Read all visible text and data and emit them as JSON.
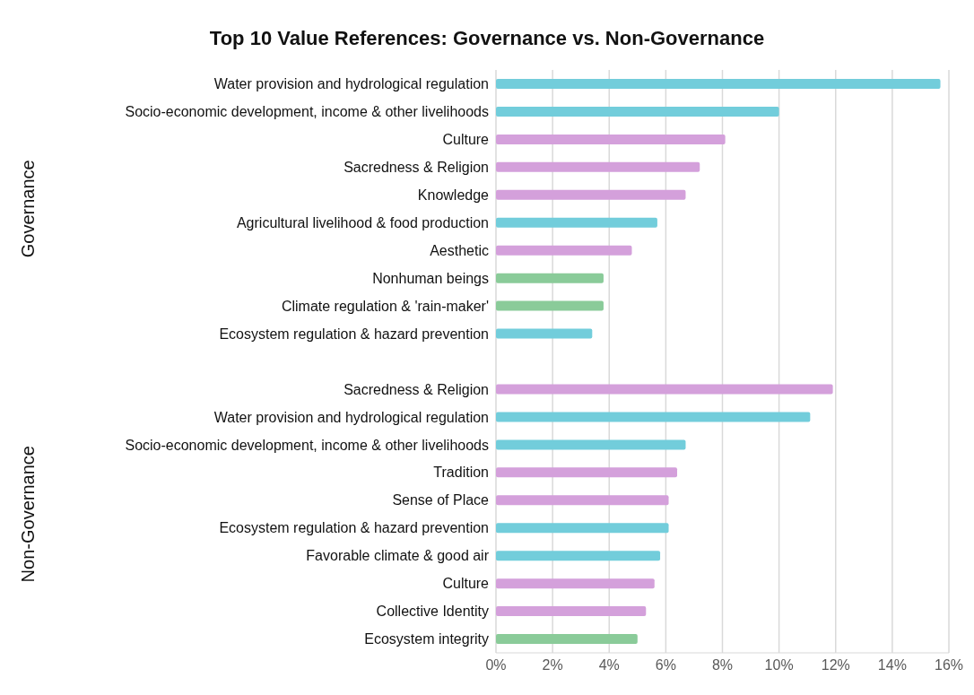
{
  "chart_data": {
    "type": "bar",
    "orientation": "horizontal",
    "title": "Top 10 Value References: Governance vs. Non-Governance",
    "categories": [
      "Water provision and hydrological regulation",
      "Socio-economic development, income & other livelihoods",
      "Culture",
      "Sacredness & Religion",
      "Knowledge",
      "Agricultural livelihood & food production",
      "Aesthetic",
      "Nonhuman beings",
      "Climate regulation & 'rain-maker'",
      "Ecosystem regulation & hazard prevention",
      null,
      "Sacredness & Religion",
      "Water provision and hydrological regulation",
      "Socio-economic development, income & other livelihoods",
      "Tradition",
      "Sense of Place",
      "Ecosystem regulation & hazard prevention",
      "Favorable climate & good air",
      "Culture",
      "Collective Identity",
      "Ecosystem integrity"
    ],
    "values": [
      15.7,
      10.0,
      8.1,
      7.2,
      6.7,
      5.7,
      4.8,
      3.8,
      3.8,
      3.4,
      null,
      11.9,
      11.1,
      6.7,
      6.4,
      6.1,
      6.1,
      5.8,
      5.6,
      5.3,
      5.0
    ],
    "colors": [
      "#72cddb",
      "#72cddb",
      "#d4a0db",
      "#d4a0db",
      "#d4a0db",
      "#72cddb",
      "#d4a0db",
      "#8acb99",
      "#8acb99",
      "#72cddb",
      null,
      "#d4a0db",
      "#72cddb",
      "#72cddb",
      "#d4a0db",
      "#d4a0db",
      "#72cddb",
      "#72cddb",
      "#d4a0db",
      "#d4a0db",
      "#8acb99"
    ],
    "xlim": [
      0,
      16
    ],
    "xticks": [
      {
        "value": 0,
        "label": "0%"
      },
      {
        "value": 2,
        "label": "2%"
      },
      {
        "value": 4,
        "label": "4%"
      },
      {
        "value": 6,
        "label": "6%"
      },
      {
        "value": 8,
        "label": "8%"
      },
      {
        "value": 10,
        "label": "10%"
      },
      {
        "value": 12,
        "label": "12%"
      },
      {
        "value": 14,
        "label": "14%"
      },
      {
        "value": 16,
        "label": "16%"
      }
    ],
    "grid": "x",
    "annotations": [
      "Governance",
      "Non-Governance"
    ]
  }
}
